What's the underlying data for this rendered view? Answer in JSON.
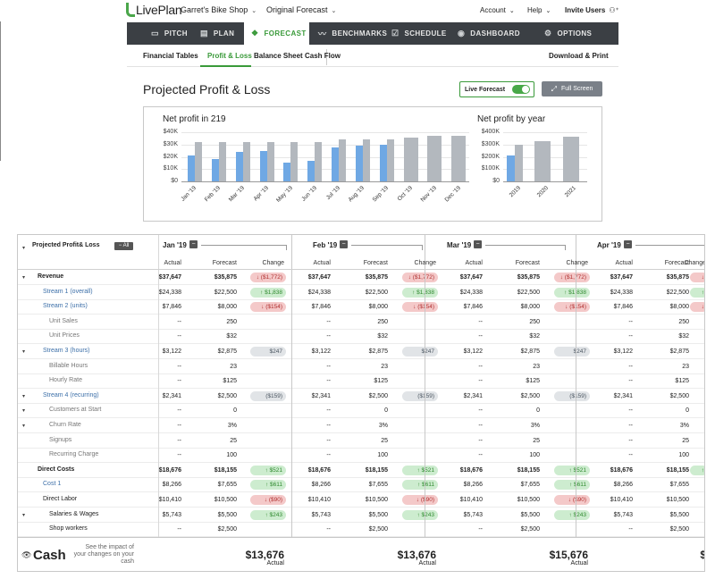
{
  "app": {
    "logo": "LivePlan",
    "company": "Garret's Bike Shop",
    "forecast": "Original Forecast",
    "account": "Account",
    "help": "Help",
    "invite": "Invite Users"
  },
  "nav": [
    {
      "label": "PITCH",
      "icon": "▭"
    },
    {
      "label": "PLAN",
      "icon": "▤"
    },
    {
      "label": "FORECAST",
      "icon": "❖"
    },
    {
      "label": "BENCHMARKS",
      "icon": "〰"
    },
    {
      "label": "SCHEDULE",
      "icon": "☑"
    },
    {
      "label": "DASHBOARD",
      "icon": "◉"
    },
    {
      "label": "OPTIONS",
      "icon": "⚙"
    }
  ],
  "subnav": {
    "financial_tables": "Financial Tables",
    "profit_loss": "Profit & Loss",
    "balance_sheet": "Balance Sheet",
    "cash_flow": "Cash Flow",
    "download": "Download & Print"
  },
  "page": {
    "title": "Projected Profit & Loss",
    "live_forecast": "Live Forecast",
    "full_screen": "Full Screen"
  },
  "chart_data": [
    {
      "type": "bar",
      "title": "Net profit in 219",
      "categories": [
        "Jan '19",
        "Feb '19",
        "Mar '19",
        "Apr '19",
        "May '19",
        "Jun '19",
        "Jul '19",
        "Aug '19",
        "Sep '19",
        "Oct '19",
        "Nov '19",
        "Dec '19"
      ],
      "yticks": [
        "$40K",
        "$30K",
        "$20K",
        "$10K",
        "$0"
      ],
      "ylim": [
        0,
        40000
      ],
      "series": [
        {
          "values": [
            21000,
            18000,
            24000,
            25000,
            15000,
            17000,
            28000,
            29000,
            30000,
            null,
            null,
            null
          ],
          "color": "#6fa8e4"
        },
        {
          "values": [
            32000,
            32000,
            32000,
            32000,
            32000,
            32000,
            34000,
            34000,
            34000,
            36000,
            37000,
            37000
          ],
          "color": "#b3b8be"
        }
      ]
    },
    {
      "type": "bar",
      "title": "Net profit by year",
      "categories": [
        "2019",
        "2020",
        "2021"
      ],
      "yticks": [
        "$400K",
        "$300K",
        "$200K",
        "$100K",
        "$0"
      ],
      "ylim": [
        0,
        400000
      ],
      "series": [
        {
          "values": [
            210000,
            null,
            null
          ],
          "color": "#6fa8e4"
        },
        {
          "values": [
            295000,
            325000,
            365000
          ],
          "color": "#b3b8be"
        }
      ]
    }
  ],
  "table": {
    "label": "Projected Profit& Loss",
    "all": "All",
    "months": [
      "Jan '19",
      "Feb '19",
      "Mar '19",
      "Apr '19"
    ],
    "col_headers": [
      "Actual",
      "Forecast",
      "Change"
    ],
    "rows": [
      {
        "label": "Revenue",
        "style": "bold",
        "exp": "▾",
        "cells": [
          [
            "$37,647",
            "$35,875",
            "↓ ($1,772)",
            "red"
          ],
          [
            "$37,647",
            "$35,875",
            "↓ ($1,772)",
            "red"
          ],
          [
            "$37,647",
            "$35,875",
            "↓ ($1,772)",
            "red"
          ],
          [
            "$37,647",
            "$35,875",
            "↓",
            "red"
          ]
        ]
      },
      {
        "label": "Stream 1 (overall)",
        "style": "link",
        "exp": "",
        "cells": [
          [
            "$24,338",
            "$22,500",
            "↑ $1,838",
            "green"
          ],
          [
            "$24,338",
            "$22,500",
            "↑ $1,838",
            "green"
          ],
          [
            "$24,338",
            "$22,500",
            "↑ $1,838",
            "green"
          ],
          [
            "$24,338",
            "$22,500",
            "↑",
            "green"
          ]
        ]
      },
      {
        "label": "Stream 2 (units)",
        "style": "link",
        "exp": "",
        "cells": [
          [
            "$7,846",
            "$8,000",
            "↓ ($154)",
            "red"
          ],
          [
            "$7,846",
            "$8,000",
            "↓ ($154)",
            "red"
          ],
          [
            "$7,846",
            "$8,000",
            "↓ ($154)",
            "red"
          ],
          [
            "$7,846",
            "$8,000",
            "↓",
            "red"
          ]
        ]
      },
      {
        "label": "Unit Sales",
        "style": "muted",
        "exp": "",
        "cells": [
          [
            "--",
            "250",
            "",
            ""
          ],
          [
            "--",
            "250",
            "",
            ""
          ],
          [
            "--",
            "250",
            "",
            ""
          ],
          [
            "--",
            "250",
            "",
            ""
          ]
        ]
      },
      {
        "label": "Unit Prices",
        "style": "muted",
        "exp": "",
        "cells": [
          [
            "--",
            "$32",
            "",
            ""
          ],
          [
            "--",
            "$32",
            "",
            ""
          ],
          [
            "--",
            "$32",
            "",
            ""
          ],
          [
            "--",
            "$32",
            "",
            ""
          ]
        ]
      },
      {
        "label": "Stream 3 (hours)",
        "style": "link",
        "exp": "▾",
        "cells": [
          [
            "$3,122",
            "$2,875",
            "$247",
            "gray"
          ],
          [
            "$3,122",
            "$2,875",
            "$247",
            "gray"
          ],
          [
            "$3,122",
            "$2,875",
            "$247",
            "gray"
          ],
          [
            "$3,122",
            "$2,875",
            "",
            ""
          ]
        ]
      },
      {
        "label": "Billable Hours",
        "style": "muted",
        "exp": "",
        "cells": [
          [
            "--",
            "23",
            "",
            ""
          ],
          [
            "--",
            "23",
            "",
            ""
          ],
          [
            "--",
            "23",
            "",
            ""
          ],
          [
            "--",
            "23",
            "",
            ""
          ]
        ]
      },
      {
        "label": "Hourly Rate",
        "style": "muted",
        "exp": "",
        "cells": [
          [
            "--",
            "$125",
            "",
            ""
          ],
          [
            "--",
            "$125",
            "",
            ""
          ],
          [
            "--",
            "$125",
            "",
            ""
          ],
          [
            "--",
            "$125",
            "",
            ""
          ]
        ]
      },
      {
        "label": "Stream 4 (recurring)",
        "style": "link",
        "exp": "▾",
        "cells": [
          [
            "$2,341",
            "$2,500",
            "($159)",
            "gray"
          ],
          [
            "$2,341",
            "$2,500",
            "($159)",
            "gray"
          ],
          [
            "$2,341",
            "$2,500",
            "($159)",
            "gray"
          ],
          [
            "$2,341",
            "$2,500",
            "",
            ""
          ]
        ]
      },
      {
        "label": "Customers at Start",
        "style": "muted",
        "exp": "▾",
        "cells": [
          [
            "--",
            "0",
            "",
            ""
          ],
          [
            "--",
            "0",
            "",
            ""
          ],
          [
            "--",
            "0",
            "",
            ""
          ],
          [
            "--",
            "0",
            "",
            ""
          ]
        ]
      },
      {
        "label": "Churn Rate",
        "style": "muted",
        "exp": "▾",
        "cells": [
          [
            "--",
            "3%",
            "",
            ""
          ],
          [
            "--",
            "3%",
            "",
            ""
          ],
          [
            "--",
            "3%",
            "",
            ""
          ],
          [
            "--",
            "3%",
            "",
            ""
          ]
        ]
      },
      {
        "label": "Signups",
        "style": "muted",
        "exp": "",
        "cells": [
          [
            "--",
            "25",
            "",
            ""
          ],
          [
            "--",
            "25",
            "",
            ""
          ],
          [
            "--",
            "25",
            "",
            ""
          ],
          [
            "--",
            "25",
            "",
            ""
          ]
        ]
      },
      {
        "label": "Recurring Charge",
        "style": "muted",
        "exp": "",
        "cells": [
          [
            "--",
            "100",
            "",
            ""
          ],
          [
            "--",
            "100",
            "",
            ""
          ],
          [
            "--",
            "100",
            "",
            ""
          ],
          [
            "--",
            "100",
            "",
            ""
          ]
        ]
      },
      {
        "label": "Direct Costs",
        "style": "bold",
        "exp": "",
        "cells": [
          [
            "$18,676",
            "$18,155",
            "↑ $521",
            "green"
          ],
          [
            "$18,676",
            "$18,155",
            "↑ $521",
            "green"
          ],
          [
            "$18,676",
            "$18,155",
            "↑ $521",
            "green"
          ],
          [
            "$18,676",
            "$18,155",
            "↑",
            "green"
          ]
        ]
      },
      {
        "label": "Cost 1",
        "style": "link",
        "exp": "",
        "cells": [
          [
            "$8,266",
            "$7,655",
            "↑ $611",
            "green"
          ],
          [
            "$8,266",
            "$7,655",
            "↑ $611",
            "green"
          ],
          [
            "$8,266",
            "$7,655",
            "↑ $611",
            "green"
          ],
          [
            "$8,266",
            "$7,655",
            "",
            ""
          ]
        ]
      },
      {
        "label": "Direct Labor",
        "style": "dark",
        "exp": "",
        "cells": [
          [
            "$10,410",
            "$10,500",
            "↓ ($90)",
            "red"
          ],
          [
            "$10,410",
            "$10,500",
            "↓ ($90)",
            "red"
          ],
          [
            "$10,410",
            "$10,500",
            "↓ ($90)",
            "red"
          ],
          [
            "$10,410",
            "$10,500",
            "",
            ""
          ]
        ]
      },
      {
        "label": "Salaries & Wages",
        "style": "dark",
        "exp": "▾",
        "cells": [
          [
            "$5,743",
            "$5,500",
            "↑ $243",
            "green"
          ],
          [
            "$5,743",
            "$5,500",
            "↑ $243",
            "green"
          ],
          [
            "$5,743",
            "$5,500",
            "↑ $243",
            "green"
          ],
          [
            "$5,743",
            "$5,500",
            "",
            ""
          ]
        ]
      },
      {
        "label": "Shop workers",
        "style": "dark",
        "exp": "",
        "cells": [
          [
            "--",
            "$2,500",
            "",
            ""
          ],
          [
            "--",
            "$2,500",
            "",
            ""
          ],
          [
            "--",
            "$2,500",
            "",
            ""
          ],
          [
            "--",
            "$2,500",
            "",
            ""
          ]
        ]
      }
    ],
    "cash": {
      "label": "Cash",
      "note": "See the impact of your changes on your cash",
      "values": [
        "$13,676",
        "$13,676",
        "$15,676",
        "$"
      ],
      "sub": "Actual"
    }
  }
}
